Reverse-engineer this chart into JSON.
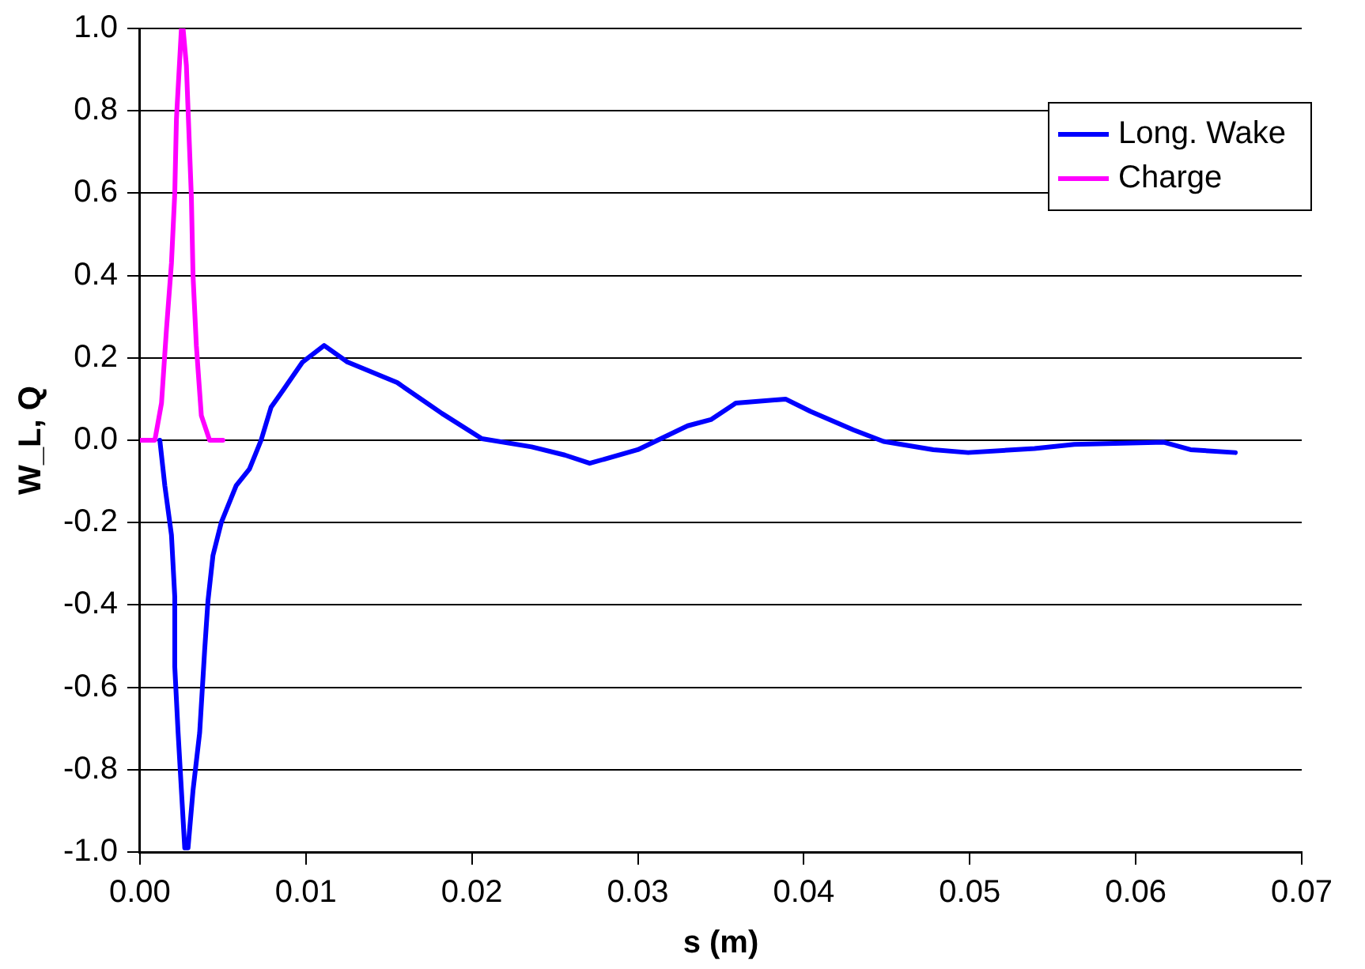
{
  "chart_data": {
    "type": "line",
    "xlabel": "s (m)",
    "ylabel": "W_L, Q",
    "xlim": [
      0,
      0.07
    ],
    "xticks": [
      {
        "value": 0,
        "label": "0.00"
      },
      {
        "value": 0.01,
        "label": "0.01"
      },
      {
        "value": 0.02,
        "label": "0.02"
      },
      {
        "value": 0.03,
        "label": "0.03"
      },
      {
        "value": 0.04,
        "label": "0.04"
      },
      {
        "value": 0.05,
        "label": "0.05"
      },
      {
        "value": 0.06,
        "label": "0.06"
      },
      {
        "value": 0.07,
        "label": "0.07"
      }
    ],
    "ylim": [
      -1,
      1
    ],
    "yticks": [
      {
        "value": -1,
        "label": "-1.0"
      },
      {
        "value": -0.8,
        "label": "-0.8"
      },
      {
        "value": -0.6,
        "label": "-0.6"
      },
      {
        "value": -0.4,
        "label": "-0.4"
      },
      {
        "value": -0.2,
        "label": "-0.2"
      },
      {
        "value": 0,
        "label": "0.0"
      },
      {
        "value": 0.2,
        "label": "0.2"
      },
      {
        "value": 0.4,
        "label": "0.4"
      },
      {
        "value": 0.6,
        "label": "0.6"
      },
      {
        "value": 0.8,
        "label": "0.8"
      },
      {
        "value": 1,
        "label": "1.0"
      }
    ],
    "grid": "y",
    "legend": "top right",
    "marker": "none",
    "line_style": "solid",
    "series": [
      {
        "name": "Long. Wake",
        "color": "#0000ff",
        "x": [
          0.0012,
          0.0015,
          0.0019,
          0.0021,
          0.0021,
          0.0023,
          0.0025,
          0.0027,
          0.0029,
          0.0032,
          0.0036,
          0.0039,
          0.0041,
          0.0044,
          0.0049,
          0.0058,
          0.0066,
          0.0073,
          0.0079,
          0.0086,
          0.0098,
          0.0111,
          0.0125,
          0.0155,
          0.0182,
          0.0206,
          0.0236,
          0.0256,
          0.0271,
          0.03,
          0.033,
          0.0344,
          0.0359,
          0.0389,
          0.0404,
          0.043,
          0.0448,
          0.0478,
          0.0499,
          0.0539,
          0.0563,
          0.0617,
          0.0633,
          0.066
        ],
        "values": [
          0,
          -0.11,
          -0.23,
          -0.38,
          -0.55,
          -0.71,
          -0.85,
          -0.99,
          -0.99,
          -0.85,
          -0.71,
          -0.51,
          -0.39,
          -0.28,
          -0.2,
          -0.11,
          -0.07,
          0,
          0.08,
          0.12,
          0.19,
          0.23,
          0.19,
          0.14,
          0.065,
          0.004,
          -0.016,
          -0.036,
          -0.056,
          -0.023,
          0.035,
          0.05,
          0.09,
          0.1,
          0.07,
          0.025,
          -0.003,
          -0.023,
          -0.03,
          -0.02,
          -0.01,
          -0.005,
          -0.023,
          -0.03
        ]
      },
      {
        "name": "Charge",
        "color": "#ff00ff",
        "x": [
          0,
          0.0009,
          0.0013,
          0.0016,
          0.0019,
          0.0021,
          0.0022,
          0.0025,
          0.0026,
          0.0028,
          0.0031,
          0.0032,
          0.0034,
          0.0037,
          0.0042,
          0.005
        ],
        "values": [
          0,
          0,
          0.09,
          0.27,
          0.43,
          0.6,
          0.78,
          1,
          1,
          0.91,
          0.59,
          0.4,
          0.23,
          0.06,
          0,
          0
        ]
      }
    ]
  }
}
